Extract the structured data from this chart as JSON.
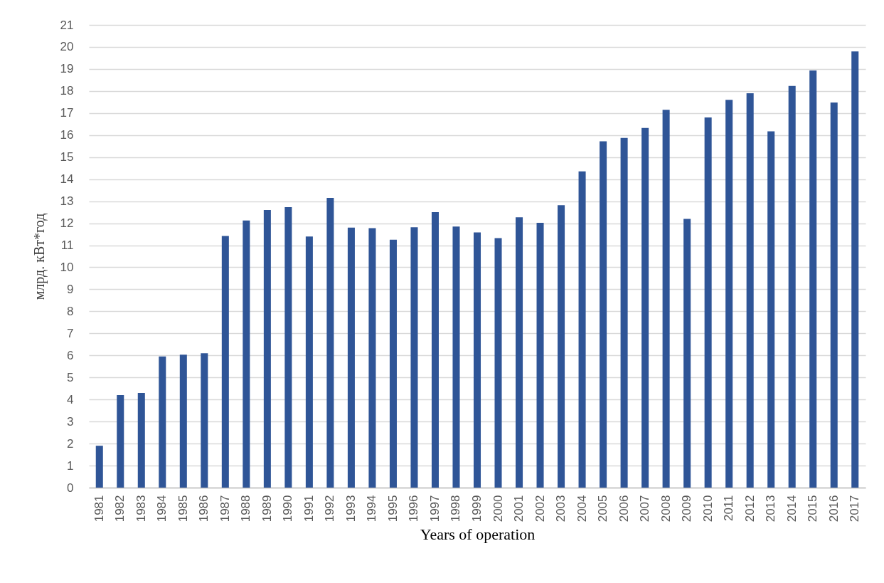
{
  "chart_data": {
    "type": "bar",
    "xlabel": "Years of operation",
    "ylabel": "млрд. кВт*год",
    "categories": [
      "1981",
      "1982",
      "1983",
      "1984",
      "1985",
      "1986",
      "1987",
      "1988",
      "1989",
      "1990",
      "1991",
      "1992",
      "1993",
      "1994",
      "1995",
      "1996",
      "1997",
      "1998",
      "1999",
      "2000",
      "2001",
      "2002",
      "2003",
      "2004",
      "2005",
      "2006",
      "2007",
      "2008",
      "2009",
      "2010",
      "2011",
      "2012",
      "2013",
      "2014",
      "2015",
      "2016",
      "2017"
    ],
    "values": [
      1.9,
      4.2,
      4.3,
      5.95,
      6.03,
      6.1,
      11.42,
      12.12,
      12.6,
      12.73,
      11.4,
      13.15,
      11.8,
      11.78,
      11.25,
      11.82,
      12.5,
      11.85,
      11.58,
      11.32,
      12.27,
      12.02,
      12.82,
      14.35,
      15.72,
      15.87,
      16.32,
      17.15,
      12.2,
      16.8,
      17.6,
      17.9,
      16.17,
      18.23,
      18.93,
      17.48,
      19.8
    ],
    "color": "#2f5597",
    "ylim": [
      0,
      21
    ],
    "yticks": [
      0,
      1,
      2,
      3,
      4,
      5,
      6,
      7,
      8,
      9,
      10,
      11,
      12,
      13,
      14,
      15,
      16,
      17,
      18,
      19,
      20,
      21
    ],
    "grid": "y"
  }
}
